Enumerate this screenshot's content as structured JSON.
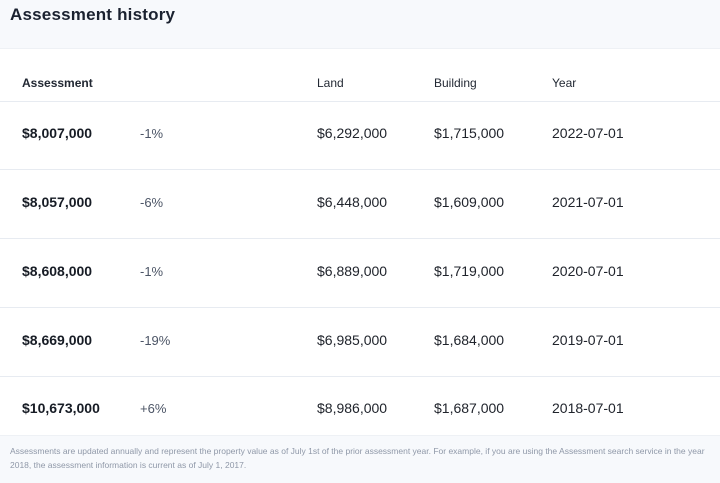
{
  "page": {
    "title": "Assessment history"
  },
  "table": {
    "headers": {
      "assessment": "Assessment",
      "land": "Land",
      "building": "Building",
      "year": "Year"
    },
    "rows": [
      {
        "assessment": "$8,007,000",
        "change": "-1%",
        "land": "$6,292,000",
        "building": "$1,715,000",
        "year": "2022-07-01"
      },
      {
        "assessment": "$8,057,000",
        "change": "-6%",
        "land": "$6,448,000",
        "building": "$1,609,000",
        "year": "2021-07-01"
      },
      {
        "assessment": "$8,608,000",
        "change": "-1%",
        "land": "$6,889,000",
        "building": "$1,719,000",
        "year": "2020-07-01"
      },
      {
        "assessment": "$8,669,000",
        "change": "-19%",
        "land": "$6,985,000",
        "building": "$1,684,000",
        "year": "2019-07-01"
      },
      {
        "assessment": "$10,673,000",
        "change": "+6%",
        "land": "$8,986,000",
        "building": "$1,687,000",
        "year": "2018-07-01"
      }
    ]
  },
  "footnote": "Assessments are updated annually and represent the property value as of July 1st of the prior assessment year. For example, if you are using the Assessment search service in the year 2018, the assessment information is current as of July 1, 2017."
}
